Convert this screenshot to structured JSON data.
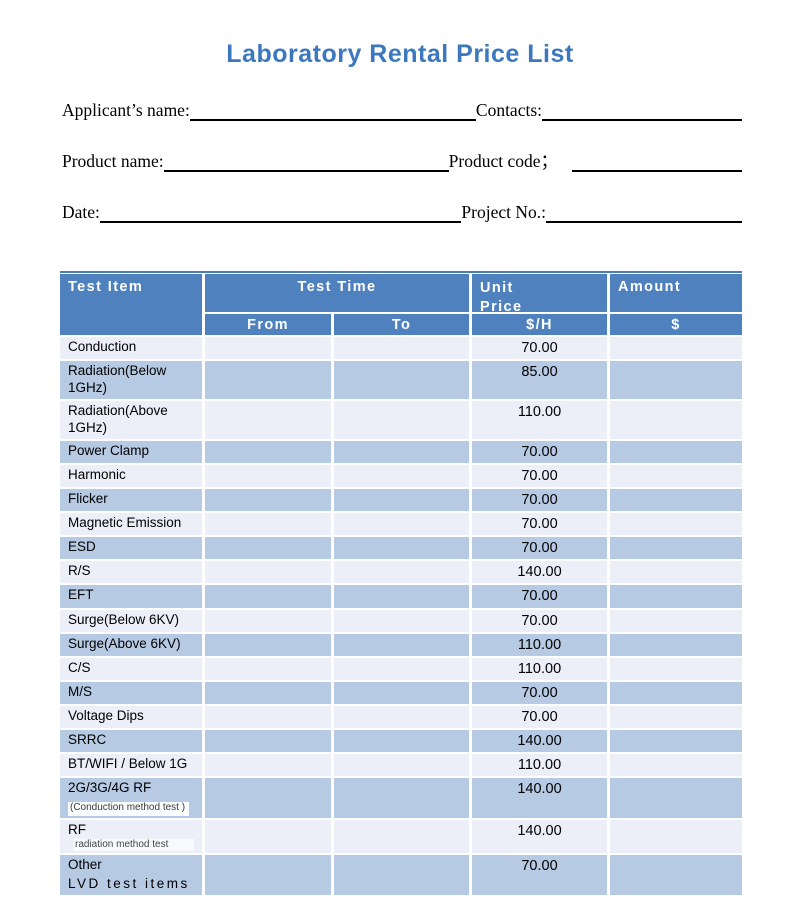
{
  "title": "Laboratory Rental Price List",
  "form": {
    "applicant_label": "Applicant’s name:",
    "contacts_label": "Contacts:",
    "product_name_label": "Product name:",
    "product_code_label": "Product code；",
    "date_label": "Date:",
    "project_no_label": "Project No.:",
    "applicant_value": "",
    "contacts_value": "",
    "product_name_value": "",
    "product_code_value": "",
    "date_value": "",
    "project_no_value": ""
  },
  "table": {
    "headers": {
      "test_item": "Test Item",
      "test_time": "Test Time",
      "unit_price": "Unit Price",
      "amount": "Amount",
      "from": "From",
      "to": "To",
      "per_hour": "$/H",
      "dollar": "$"
    },
    "rows": [
      {
        "item": "Conduction",
        "from": "",
        "to": "",
        "price": "70.00",
        "amount": ""
      },
      {
        "item": "Radiation(Below 1GHz)",
        "from": "",
        "to": "",
        "price": "85.00",
        "amount": ""
      },
      {
        "item": "Radiation(Above 1GHz)",
        "from": "",
        "to": "",
        "price": "110.00",
        "amount": ""
      },
      {
        "item": "Power Clamp",
        "from": "",
        "to": "",
        "price": "70.00",
        "amount": ""
      },
      {
        "item": "Harmonic",
        "from": "",
        "to": "",
        "price": "70.00",
        "amount": ""
      },
      {
        "item": "Flicker",
        "from": "",
        "to": "",
        "price": "70.00",
        "amount": ""
      },
      {
        "item": "Magnetic Emission",
        "from": "",
        "to": "",
        "price": "70.00",
        "amount": ""
      },
      {
        "item": "ESD",
        "from": "",
        "to": "",
        "price": "70.00",
        "amount": ""
      },
      {
        "item": "R/S",
        "from": "",
        "to": "",
        "price": "140.00",
        "amount": ""
      },
      {
        "item": "EFT",
        "from": "",
        "to": "",
        "price": "70.00",
        "amount": ""
      },
      {
        "item": "Surge(Below 6KV)",
        "from": "",
        "to": "",
        "price": "70.00",
        "amount": ""
      },
      {
        "item": "Surge(Above 6KV)",
        "from": "",
        "to": "",
        "price": "110.00",
        "amount": ""
      },
      {
        "item": "C/S",
        "from": "",
        "to": "",
        "price": "110.00",
        "amount": ""
      },
      {
        "item": "M/S",
        "from": "",
        "to": "",
        "price": "70.00",
        "amount": ""
      },
      {
        "item": "Voltage Dips",
        "from": "",
        "to": "",
        "price": "70.00",
        "amount": ""
      },
      {
        "item": "SRRC",
        "from": "",
        "to": "",
        "price": "140.00",
        "amount": ""
      },
      {
        "item": "BT/WIFI / Below 1G",
        "from": "",
        "to": "",
        "price": "110.00",
        "amount": ""
      },
      {
        "item": "2G/3G/4G RF",
        "sub_boxed": "(Conduction method test )",
        "from": "",
        "to": "",
        "price": "140.00",
        "amount": ""
      },
      {
        "item": "RF",
        "sub_inline": "radiation method test",
        "from": "",
        "to": "",
        "price": "140.00",
        "amount": ""
      },
      {
        "item": "Other",
        "line2": "LVD test items",
        "line2_spaced": true,
        "from": "",
        "to": "",
        "price": "70.00",
        "amount": ""
      }
    ]
  },
  "colors": {
    "header": "#4e81bd",
    "dark": "#b7cae3",
    "light": "#eceff7",
    "title": "#3c78be",
    "border": "#4a7db8"
  }
}
